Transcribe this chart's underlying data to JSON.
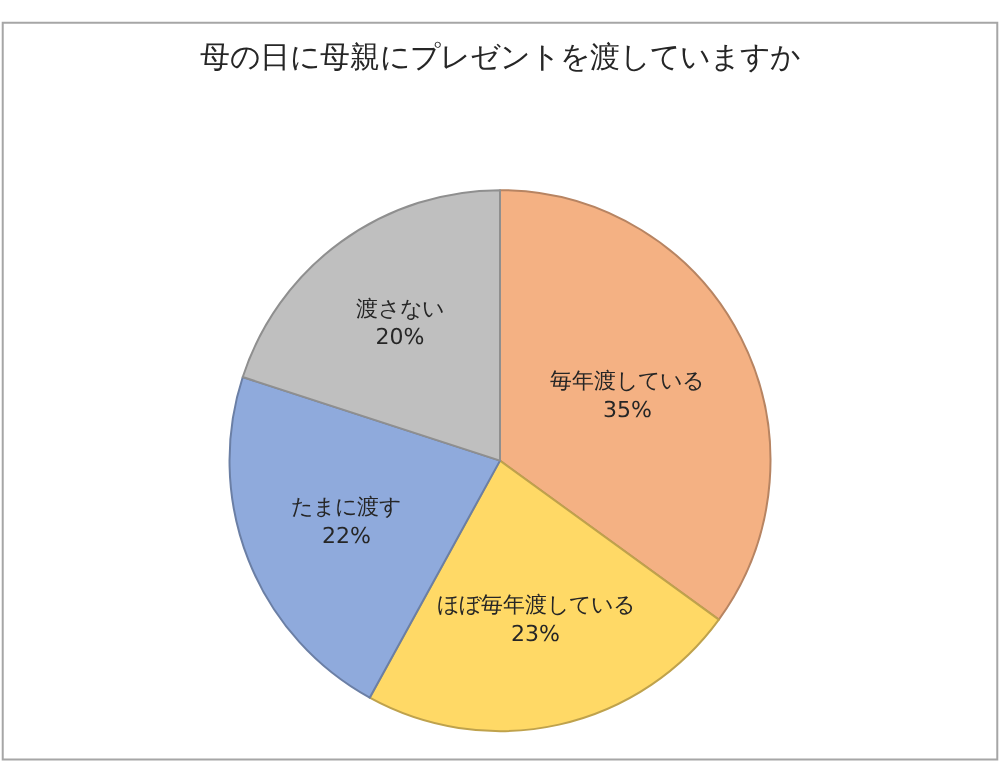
{
  "chart_data": {
    "type": "pie",
    "title": "母の日に母親にプレゼントを渡していますか",
    "categories": [
      "毎年渡している",
      "ほぼ毎年渡している",
      "たまに渡す",
      "渡さない"
    ],
    "values": [
      35,
      23,
      22,
      20
    ],
    "value_labels": [
      "35%",
      "23%",
      "22%",
      "20%"
    ],
    "colors": [
      "#f4b183",
      "#ffd966",
      "#8faadc",
      "#bfbfbf"
    ],
    "legend": false
  }
}
